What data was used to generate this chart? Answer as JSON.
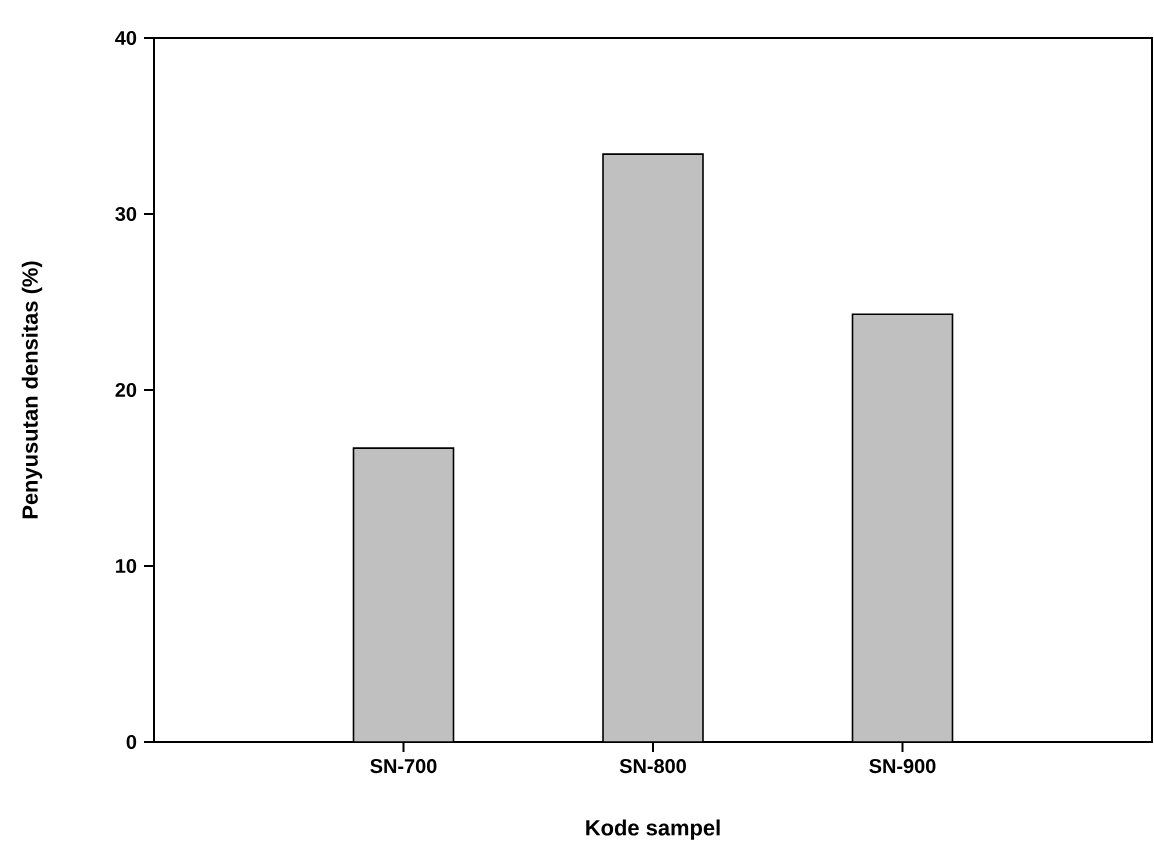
{
  "chart_data": {
    "type": "bar",
    "xlabel": "Kode sampel",
    "ylabel": "Penyusutan densitas (%)",
    "categories": [
      "SN-700",
      "SN-800",
      "SN-900"
    ],
    "values": [
      16.7,
      33.4,
      24.3
    ],
    "color": "#c0c0c0",
    "ylim": [
      0,
      40
    ],
    "yticks": [
      0,
      10,
      20,
      30,
      40
    ]
  }
}
